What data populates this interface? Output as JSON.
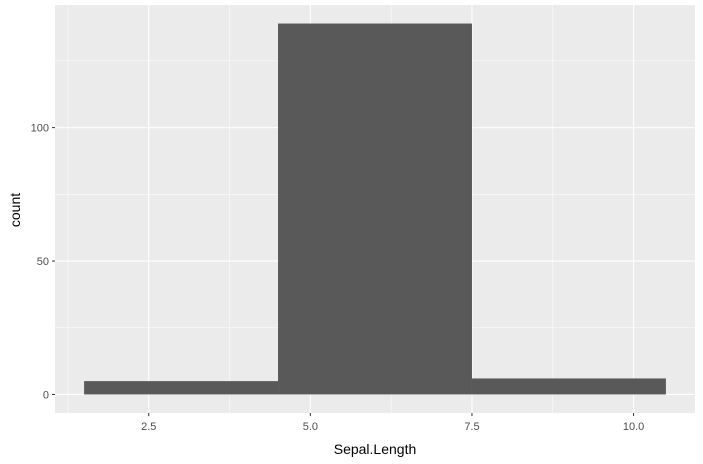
{
  "chart_data": {
    "type": "bar",
    "subtype": "histogram",
    "title": "",
    "xlabel": "Sepal.Length",
    "ylabel": "count",
    "bins": [
      {
        "x_start": 1.5,
        "x_end": 4.5,
        "count": 5
      },
      {
        "x_start": 4.5,
        "x_end": 7.5,
        "count": 139
      },
      {
        "x_start": 7.5,
        "x_end": 10.5,
        "count": 6
      }
    ],
    "xlim": [
      1.05,
      10.95
    ],
    "ylim": [
      -6.95,
      145.95
    ],
    "x_ticks": [
      2.5,
      5.0,
      7.5,
      10.0
    ],
    "x_tick_labels": [
      "2.5",
      "5.0",
      "7.5",
      "10.0"
    ],
    "y_ticks": [
      0,
      50,
      100
    ],
    "y_tick_labels": [
      "0",
      "50",
      "100"
    ],
    "grid": true,
    "legend": "none",
    "colors": {
      "panel_background": "#ebebeb",
      "grid_major": "#ffffff",
      "bar_fill": "#595959",
      "tick_mark": "#333333",
      "tick_text": "#4d4d4d",
      "title_text": "#000000"
    }
  }
}
